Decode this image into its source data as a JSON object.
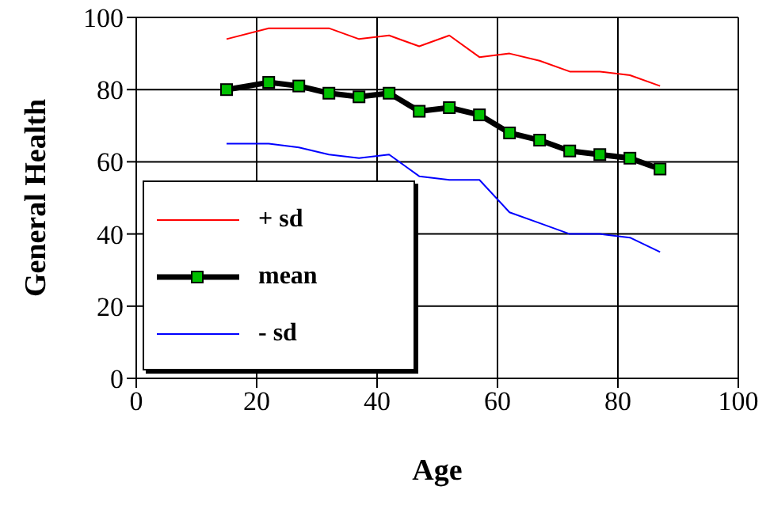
{
  "chart_data": {
    "type": "line",
    "xlabel": "Age",
    "ylabel": "General Health",
    "x": [
      15,
      22,
      27,
      32,
      37,
      42,
      47,
      52,
      57,
      62,
      67,
      72,
      77,
      82,
      87
    ],
    "series": [
      {
        "name": "+ sd",
        "color": "#ff0000",
        "marker": "none",
        "values": [
          94,
          97,
          97,
          97,
          94,
          95,
          92,
          95,
          89,
          90,
          88,
          85,
          85,
          84,
          81
        ]
      },
      {
        "name": "mean",
        "color": "#000000",
        "marker": "square",
        "values": [
          80,
          82,
          81,
          79,
          78,
          79,
          74,
          75,
          73,
          68,
          66,
          63,
          62,
          61,
          58
        ]
      },
      {
        "name": "- sd",
        "color": "#0000ff",
        "marker": "none",
        "values": [
          65,
          65,
          64,
          62,
          61,
          62,
          56,
          55,
          55,
          46,
          43,
          40,
          40,
          39,
          35
        ]
      }
    ],
    "xlim": [
      0,
      100
    ],
    "xticks": [
      0,
      20,
      40,
      60,
      80,
      100
    ],
    "ylim": [
      0,
      100
    ],
    "yticks": [
      0,
      20,
      40,
      60,
      80,
      100
    ],
    "grid": true,
    "legend": "bottom left",
    "line_style": "solid"
  }
}
